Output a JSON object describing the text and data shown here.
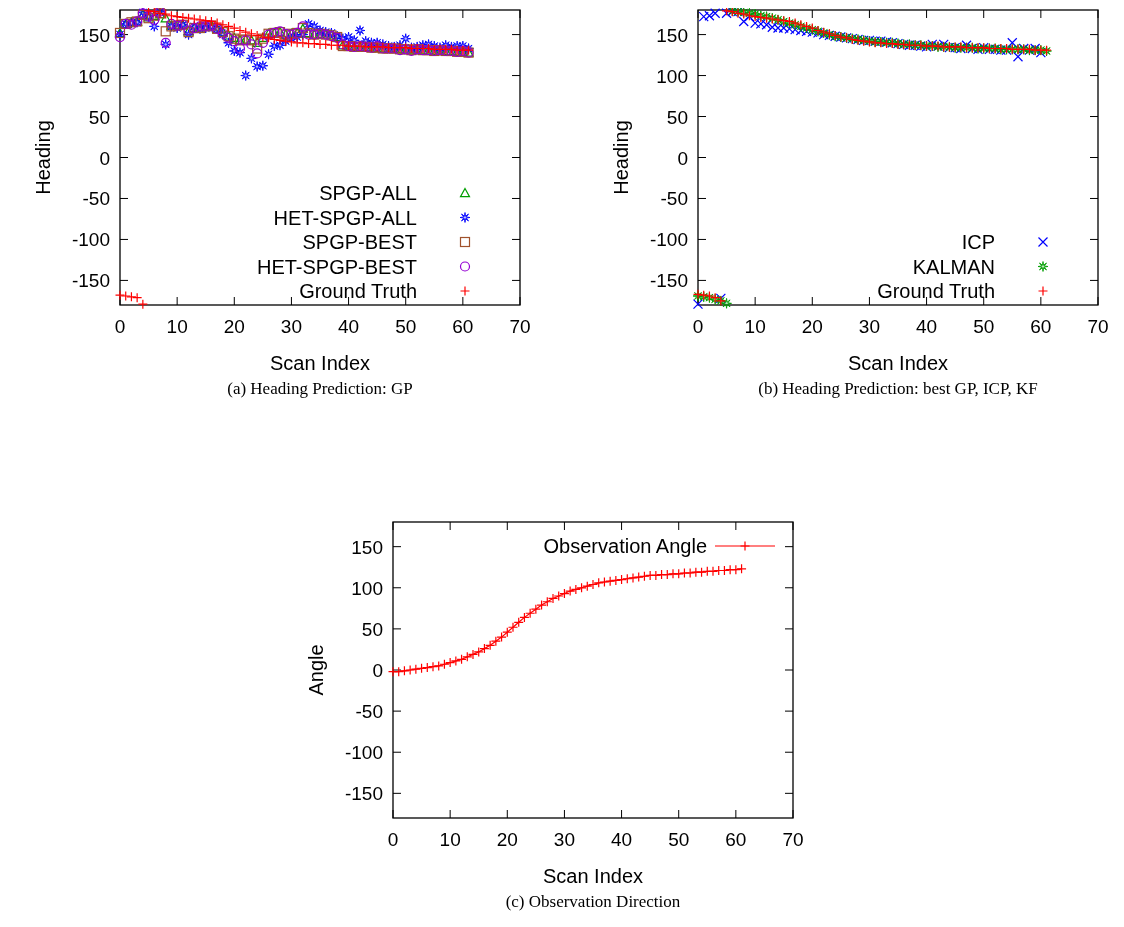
{
  "chart_data": [
    {
      "type": "scatter",
      "title": "(a) Heading Prediction: GP",
      "xlabel": "Scan Index",
      "ylabel": "Heading",
      "xlim": [
        0,
        70
      ],
      "xticks": [
        0,
        10,
        20,
        30,
        40,
        50,
        60,
        70
      ],
      "ylim": [
        -180,
        180
      ],
      "yticks": [
        -150,
        -100,
        -50,
        0,
        50,
        100,
        150
      ],
      "legend": "bottom right",
      "x": [
        0,
        1,
        2,
        3,
        4,
        5,
        6,
        7,
        8,
        9,
        10,
        11,
        12,
        13,
        14,
        15,
        16,
        17,
        18,
        19,
        20,
        21,
        22,
        23,
        24,
        25,
        26,
        27,
        28,
        29,
        30,
        31,
        32,
        33,
        34,
        35,
        36,
        37,
        38,
        39,
        40,
        41,
        42,
        43,
        44,
        45,
        46,
        47,
        48,
        49,
        50,
        51,
        52,
        53,
        54,
        55,
        56,
        57,
        58,
        59,
        60,
        61
      ],
      "series": [
        {
          "name": "SPGP-ALL",
          "color": "#009e00",
          "marker": "triangle",
          "values": [
            152,
            163,
            165,
            166,
            174,
            171,
            173,
            175,
            170,
            161,
            161,
            162,
            154,
            158,
            159,
            160,
            161,
            157,
            153,
            149,
            146,
            143,
            144,
            143,
            140,
            146,
            151,
            152,
            153,
            150,
            151,
            152,
            157,
            152,
            150,
            151,
            150,
            149,
            147,
            137,
            136,
            135,
            135,
            135,
            134,
            134,
            133,
            133,
            133,
            132,
            132,
            131,
            132,
            131,
            131,
            130,
            131,
            130,
            130,
            129,
            129,
            128
          ]
        },
        {
          "name": "HET-SPGP-ALL",
          "color": "#0000ff",
          "marker": "star",
          "values": [
            150,
            163,
            164,
            165,
            177,
            172,
            160,
            178,
            138,
            160,
            158,
            162,
            150,
            160,
            157,
            158,
            160,
            157,
            150,
            140,
            130,
            128,
            100,
            121,
            111,
            112,
            126,
            136,
            137,
            142,
            145,
            147,
            150,
            163,
            160,
            155,
            153,
            152,
            148,
            145,
            147,
            143,
            155,
            142,
            140,
            140,
            138,
            136,
            135,
            137,
            145,
            134,
            135,
            137,
            138,
            136,
            134,
            137,
            135,
            136,
            136,
            133
          ]
        },
        {
          "name": "SPGP-BEST",
          "color": "#a0522d",
          "marker": "square",
          "values": [
            152,
            163,
            165,
            166,
            174,
            170,
            173,
            176,
            154,
            160,
            161,
            162,
            153,
            158,
            158,
            160,
            161,
            157,
            153,
            148,
            145,
            143,
            144,
            143,
            133,
            145,
            151,
            152,
            153,
            150,
            151,
            152,
            158,
            152,
            150,
            151,
            150,
            149,
            147,
            136,
            136,
            135,
            135,
            135,
            134,
            134,
            133,
            133,
            133,
            132,
            132,
            131,
            132,
            131,
            131,
            130,
            131,
            130,
            130,
            129,
            129,
            128
          ]
        },
        {
          "name": "HET-SPGP-BEST",
          "color": "#9400d3",
          "marker": "circle",
          "values": [
            147,
            163,
            162,
            166,
            176,
            172,
            168,
            178,
            140,
            163,
            161,
            162,
            155,
            158,
            160,
            160,
            161,
            157,
            151,
            146,
            142,
            133,
            143,
            138,
            127,
            140,
            150,
            152,
            154,
            151,
            150,
            152,
            160,
            150,
            150,
            151,
            150,
            148,
            146,
            138,
            136,
            135,
            136,
            135,
            134,
            136,
            133,
            133,
            133,
            131,
            132,
            130,
            132,
            131,
            131,
            130,
            131,
            130,
            130,
            129,
            130,
            128
          ]
        },
        {
          "name": "Ground Truth",
          "color": "#ff0000",
          "marker": "cross",
          "values": [
            -168,
            -169,
            -170,
            -171,
            -179,
            179,
            178,
            176,
            175,
            173,
            172,
            171,
            170,
            169,
            168,
            167,
            166,
            164,
            162,
            160,
            158,
            155,
            153,
            151,
            149,
            147,
            146,
            144,
            143,
            142,
            141,
            140,
            140,
            139,
            139,
            138,
            138,
            137,
            137,
            137,
            136,
            136,
            136,
            135,
            135,
            135,
            135,
            134,
            134,
            134,
            134,
            133,
            133,
            133,
            133,
            132,
            132,
            132,
            132,
            131,
            131,
            131
          ]
        }
      ]
    },
    {
      "type": "scatter",
      "title": "(b) Heading Prediction: best GP, ICP, KF",
      "xlabel": "Scan Index",
      "ylabel": "Heading",
      "xlim": [
        0,
        70
      ],
      "xticks": [
        0,
        10,
        20,
        30,
        40,
        50,
        60,
        70
      ],
      "ylim": [
        -180,
        180
      ],
      "yticks": [
        -150,
        -100,
        -50,
        0,
        50,
        100,
        150
      ],
      "legend": "bottom right",
      "x": [
        0,
        1,
        2,
        3,
        4,
        5,
        6,
        7,
        8,
        9,
        10,
        11,
        12,
        13,
        14,
        15,
        16,
        17,
        18,
        19,
        20,
        21,
        22,
        23,
        24,
        25,
        26,
        27,
        28,
        29,
        30,
        31,
        32,
        33,
        34,
        35,
        36,
        37,
        38,
        39,
        40,
        41,
        42,
        43,
        44,
        45,
        46,
        47,
        48,
        49,
        50,
        51,
        52,
        53,
        54,
        55,
        56,
        57,
        58,
        59,
        60,
        61
      ],
      "series": [
        {
          "name": "ICP",
          "color": "#0000ff",
          "marker": "x",
          "values": [
            -179,
            172,
            173,
            176,
            -172,
            176,
            178,
            178,
            166,
            172,
            164,
            163,
            162,
            159,
            158,
            158,
            157,
            156,
            155,
            154,
            153,
            152,
            150,
            149,
            148,
            147,
            146,
            145,
            144,
            143,
            143,
            142,
            142,
            141,
            140,
            139,
            138,
            137,
            137,
            136,
            135,
            138,
            136,
            138,
            134,
            134,
            133,
            137,
            133,
            132,
            134,
            132,
            132,
            131,
            131,
            140,
            123,
            133,
            131,
            133,
            128,
            null
          ]
        },
        {
          "name": "KALMAN",
          "color": "#009e00",
          "marker": "star",
          "values": [
            -169,
            -170,
            -171,
            -173,
            -175,
            -178,
            179,
            178,
            177,
            176,
            175,
            173,
            172,
            170,
            168,
            166,
            164,
            162,
            160,
            158,
            156,
            154,
            152,
            150,
            148,
            147,
            146,
            145,
            144,
            143,
            142,
            141,
            141,
            140,
            140,
            139,
            138,
            138,
            137,
            137,
            136,
            136,
            135,
            135,
            135,
            134,
            134,
            134,
            134,
            133,
            133,
            133,
            133,
            132,
            132,
            132,
            132,
            132,
            131,
            131,
            131,
            130
          ]
        },
        {
          "name": "Ground Truth",
          "color": "#ff0000",
          "marker": "cross",
          "values": [
            -167,
            -168,
            -169,
            -171,
            -175,
            179,
            178,
            176,
            175,
            173,
            172,
            171,
            170,
            169,
            168,
            167,
            166,
            164,
            162,
            160,
            158,
            155,
            153,
            151,
            149,
            147,
            146,
            144,
            143,
            142,
            141,
            140,
            140,
            139,
            139,
            138,
            138,
            137,
            137,
            137,
            136,
            136,
            136,
            135,
            135,
            135,
            135,
            134,
            134,
            134,
            134,
            133,
            133,
            133,
            133,
            132,
            132,
            132,
            132,
            131,
            131,
            131
          ]
        }
      ]
    },
    {
      "type": "line",
      "title": "(c) Observation Direction",
      "xlabel": "Scan Index",
      "ylabel": "Angle",
      "xlim": [
        0,
        70
      ],
      "xticks": [
        0,
        10,
        20,
        30,
        40,
        50,
        60,
        70
      ],
      "ylim": [
        -180,
        180
      ],
      "yticks": [
        -150,
        -100,
        -50,
        0,
        50,
        100,
        150
      ],
      "legend": "top right",
      "marker": "cross",
      "line_style": "solid",
      "x": [
        0,
        1,
        2,
        3,
        4,
        5,
        6,
        7,
        8,
        9,
        10,
        11,
        12,
        13,
        14,
        15,
        16,
        17,
        18,
        19,
        20,
        21,
        22,
        23,
        24,
        25,
        26,
        27,
        28,
        29,
        30,
        31,
        32,
        33,
        34,
        35,
        36,
        37,
        38,
        39,
        40,
        41,
        42,
        43,
        44,
        45,
        46,
        47,
        48,
        49,
        50,
        51,
        52,
        53,
        54,
        55,
        56,
        57,
        58,
        59,
        60,
        61
      ],
      "series": [
        {
          "name": "Observation Angle",
          "color": "#ff0000",
          "values": [
            -2,
            -2,
            -1,
            0,
            1,
            2,
            3,
            4,
            5,
            7,
            9,
            11,
            13,
            16,
            19,
            22,
            26,
            30,
            35,
            40,
            46,
            52,
            58,
            64,
            69,
            74,
            79,
            83,
            87,
            90,
            93,
            96,
            98,
            100,
            102,
            104,
            106,
            107,
            108,
            109,
            110,
            111,
            112,
            113,
            114,
            115,
            115,
            116,
            116,
            117,
            117,
            118,
            118,
            119,
            119,
            120,
            120,
            121,
            121,
            122,
            122,
            123
          ]
        }
      ]
    }
  ]
}
